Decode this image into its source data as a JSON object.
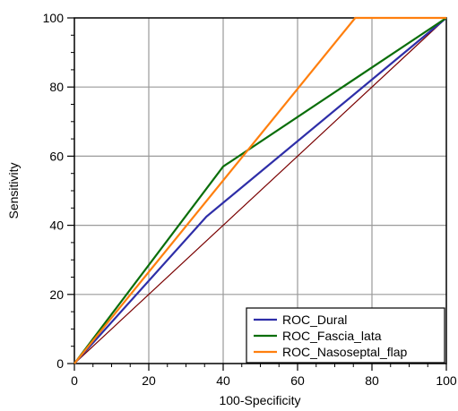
{
  "chart_data": {
    "type": "line",
    "title": "",
    "xlabel": "100-Specificity",
    "ylabel": "Sensitivity",
    "xlim": [
      0,
      100
    ],
    "ylim": [
      0,
      100
    ],
    "x_ticks": [
      0,
      20,
      40,
      60,
      80,
      100
    ],
    "y_ticks": [
      0,
      20,
      40,
      60,
      80,
      100
    ],
    "grid": true,
    "legend_position": "bottom-right",
    "series": [
      {
        "name": "ROC_Dural",
        "color": "#2e2ea8",
        "points": [
          [
            0,
            0
          ],
          [
            35.5,
            42.5
          ],
          [
            100,
            100
          ]
        ]
      },
      {
        "name": "ROC_Fascia_lata",
        "color": "#0a6e0a",
        "points": [
          [
            0,
            0
          ],
          [
            40,
            57
          ],
          [
            100,
            100
          ]
        ]
      },
      {
        "name": "ROC_Nasoseptal_flap",
        "color": "#ff7f0e",
        "points": [
          [
            0,
            0
          ],
          [
            75.5,
            100
          ],
          [
            100,
            100
          ]
        ]
      }
    ],
    "reference_line": {
      "color": "#7a0000",
      "points": [
        [
          0,
          0
        ],
        [
          100,
          100
        ]
      ]
    }
  }
}
